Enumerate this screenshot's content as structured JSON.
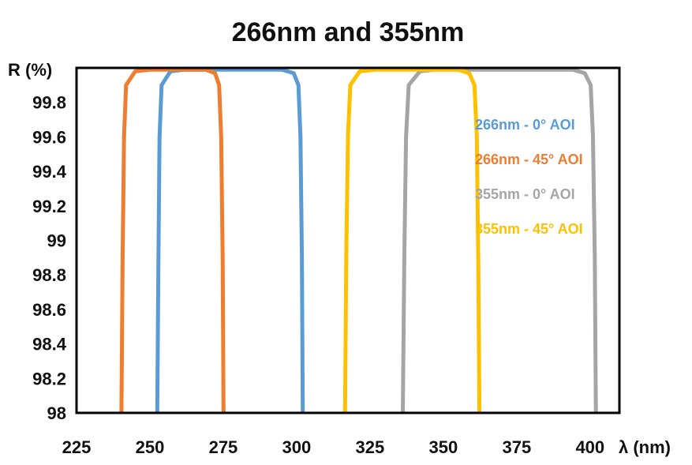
{
  "chart_data": {
    "type": "line",
    "title": "266nm and 355nm",
    "xlabel": "λ (nm)",
    "ylabel": "R (%)",
    "xlim": [
      225,
      410
    ],
    "ylim": [
      98,
      100
    ],
    "xticks": [
      "225",
      "250",
      "275",
      "300",
      "325",
      "350",
      "375",
      "400"
    ],
    "yticks": [
      "98",
      "98.2",
      "98.4",
      "98.6",
      "98.8",
      "99",
      "99.2",
      "99.4",
      "99.6",
      "99.8"
    ],
    "grid": false,
    "legend_position": "right-inside",
    "series": [
      {
        "name": "266nm - 0° AOI",
        "color": "#5b9bd5",
        "points": [
          [
            252.5,
            98.0
          ],
          [
            252.9,
            98.9
          ],
          [
            253.3,
            99.6
          ],
          [
            254.0,
            99.9
          ],
          [
            257.0,
            99.98
          ],
          [
            262.0,
            99.99
          ],
          [
            295.0,
            99.99
          ],
          [
            299.0,
            99.97
          ],
          [
            300.6,
            99.9
          ],
          [
            301.3,
            99.6
          ],
          [
            301.8,
            98.9
          ],
          [
            302.1,
            98.0
          ]
        ]
      },
      {
        "name": "266nm - 45° AOI",
        "color": "#ed7d31",
        "points": [
          [
            240.3,
            98.0
          ],
          [
            240.7,
            98.9
          ],
          [
            241.2,
            99.6
          ],
          [
            241.9,
            99.9
          ],
          [
            245.0,
            99.98
          ],
          [
            250.0,
            99.99
          ],
          [
            269.0,
            99.99
          ],
          [
            272.2,
            99.97
          ],
          [
            273.6,
            99.9
          ],
          [
            274.3,
            99.6
          ],
          [
            274.8,
            98.9
          ],
          [
            275.1,
            98.0
          ]
        ]
      },
      {
        "name": "355nm - 0° AOI",
        "color": "#a5a5a5",
        "points": [
          [
            336.2,
            98.0
          ],
          [
            336.7,
            98.9
          ],
          [
            337.3,
            99.6
          ],
          [
            338.2,
            99.9
          ],
          [
            342.0,
            99.98
          ],
          [
            347.0,
            99.99
          ],
          [
            394.0,
            99.99
          ],
          [
            398.2,
            99.97
          ],
          [
            400.2,
            99.9
          ],
          [
            401.0,
            99.6
          ],
          [
            401.6,
            98.9
          ],
          [
            402.0,
            98.0
          ]
        ]
      },
      {
        "name": "355nm - 45° AOI",
        "color": "#ffc000",
        "points": [
          [
            316.5,
            98.0
          ],
          [
            316.9,
            98.9
          ],
          [
            317.5,
            99.6
          ],
          [
            318.3,
            99.9
          ],
          [
            321.5,
            99.98
          ],
          [
            327.0,
            99.99
          ],
          [
            355.0,
            99.99
          ],
          [
            358.8,
            99.97
          ],
          [
            360.6,
            99.9
          ],
          [
            361.4,
            99.6
          ],
          [
            361.9,
            98.9
          ],
          [
            362.3,
            98.0
          ]
        ]
      }
    ]
  }
}
